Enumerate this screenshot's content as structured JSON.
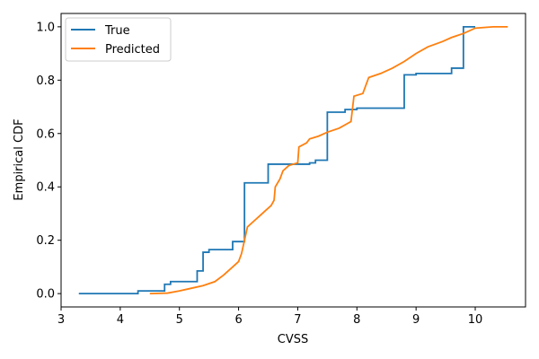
{
  "chart_data": {
    "type": "line",
    "step": true,
    "xlabel": "CVSS",
    "ylabel": "Empirical CDF",
    "xlim": [
      3.0,
      10.85
    ],
    "ylim": [
      -0.05,
      1.05
    ],
    "xticks": [
      "3",
      "4",
      "5",
      "6",
      "7",
      "8",
      "9",
      "10"
    ],
    "yticks": [
      "0.0",
      "0.2",
      "0.4",
      "0.6",
      "0.8",
      "1.0"
    ],
    "grid": false,
    "legend_position": "top-left",
    "series": [
      {
        "name": "True",
        "color": "#1f77b4",
        "points": [
          [
            3.3,
            0.0
          ],
          [
            4.3,
            0.0
          ],
          [
            4.3,
            0.01
          ],
          [
            4.75,
            0.01
          ],
          [
            4.75,
            0.035
          ],
          [
            4.85,
            0.035
          ],
          [
            4.85,
            0.045
          ],
          [
            5.3,
            0.045
          ],
          [
            5.3,
            0.085
          ],
          [
            5.4,
            0.085
          ],
          [
            5.4,
            0.155
          ],
          [
            5.5,
            0.155
          ],
          [
            5.5,
            0.165
          ],
          [
            5.9,
            0.165
          ],
          [
            5.9,
            0.195
          ],
          [
            6.1,
            0.195
          ],
          [
            6.1,
            0.415
          ],
          [
            6.5,
            0.415
          ],
          [
            6.5,
            0.485
          ],
          [
            7.2,
            0.485
          ],
          [
            7.2,
            0.49
          ],
          [
            7.3,
            0.49
          ],
          [
            7.3,
            0.5
          ],
          [
            7.5,
            0.5
          ],
          [
            7.5,
            0.68
          ],
          [
            7.8,
            0.68
          ],
          [
            7.8,
            0.69
          ],
          [
            8.0,
            0.69
          ],
          [
            8.0,
            0.695
          ],
          [
            8.8,
            0.695
          ],
          [
            8.8,
            0.82
          ],
          [
            9.0,
            0.82
          ],
          [
            9.0,
            0.825
          ],
          [
            9.6,
            0.825
          ],
          [
            9.6,
            0.845
          ],
          [
            9.8,
            0.845
          ],
          [
            9.8,
            1.0
          ],
          [
            10.0,
            1.0
          ]
        ]
      },
      {
        "name": "Predicted",
        "color": "#ff7f0e",
        "points": [
          [
            4.5,
            0.0
          ],
          [
            4.8,
            0.002
          ],
          [
            5.0,
            0.01
          ],
          [
            5.2,
            0.02
          ],
          [
            5.4,
            0.03
          ],
          [
            5.6,
            0.045
          ],
          [
            5.75,
            0.07
          ],
          [
            5.9,
            0.1
          ],
          [
            6.0,
            0.12
          ],
          [
            6.05,
            0.15
          ],
          [
            6.1,
            0.2
          ],
          [
            6.15,
            0.25
          ],
          [
            6.25,
            0.27
          ],
          [
            6.35,
            0.29
          ],
          [
            6.45,
            0.31
          ],
          [
            6.55,
            0.33
          ],
          [
            6.6,
            0.35
          ],
          [
            6.62,
            0.4
          ],
          [
            6.7,
            0.43
          ],
          [
            6.75,
            0.46
          ],
          [
            6.85,
            0.48
          ],
          [
            7.0,
            0.49
          ],
          [
            7.02,
            0.55
          ],
          [
            7.15,
            0.565
          ],
          [
            7.2,
            0.58
          ],
          [
            7.35,
            0.59
          ],
          [
            7.5,
            0.605
          ],
          [
            7.7,
            0.62
          ],
          [
            7.9,
            0.645
          ],
          [
            7.95,
            0.74
          ],
          [
            8.1,
            0.75
          ],
          [
            8.2,
            0.81
          ],
          [
            8.4,
            0.825
          ],
          [
            8.6,
            0.845
          ],
          [
            8.8,
            0.87
          ],
          [
            9.0,
            0.9
          ],
          [
            9.2,
            0.925
          ],
          [
            9.45,
            0.945
          ],
          [
            9.6,
            0.96
          ],
          [
            9.8,
            0.975
          ],
          [
            10.0,
            0.995
          ],
          [
            10.3,
            1.0
          ],
          [
            10.55,
            1.0
          ]
        ]
      }
    ]
  }
}
